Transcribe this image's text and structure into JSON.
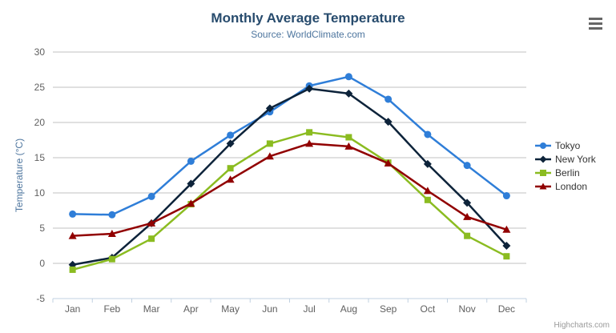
{
  "header": {
    "title": "Monthly Average Temperature",
    "subtitle": "Source: WorldClimate.com"
  },
  "toolbar": {
    "menu_icon": "hamburger-icon"
  },
  "credits": {
    "label": "Highcharts.com"
  },
  "chart_data": {
    "type": "line",
    "title": "Monthly Average Temperature",
    "subtitle": "Source: WorldClimate.com",
    "categories": [
      "Jan",
      "Feb",
      "Mar",
      "Apr",
      "May",
      "Jun",
      "Jul",
      "Aug",
      "Sep",
      "Oct",
      "Nov",
      "Dec"
    ],
    "series": [
      {
        "name": "Tokyo",
        "color": "#2f7ed8",
        "marker": "circle",
        "values": [
          7.0,
          6.9,
          9.5,
          14.5,
          18.2,
          21.5,
          25.2,
          26.5,
          23.3,
          18.3,
          13.9,
          9.6
        ]
      },
      {
        "name": "New York",
        "color": "#0d233a",
        "marker": "diamond",
        "values": [
          -0.2,
          0.8,
          5.7,
          11.3,
          17.0,
          22.0,
          24.8,
          24.1,
          20.1,
          14.1,
          8.6,
          2.5
        ]
      },
      {
        "name": "Berlin",
        "color": "#8bbc21",
        "marker": "square",
        "values": [
          -0.9,
          0.6,
          3.5,
          8.4,
          13.5,
          17.0,
          18.6,
          17.9,
          14.3,
          9.0,
          3.9,
          1.0
        ]
      },
      {
        "name": "London",
        "color": "#910000",
        "marker": "triangle",
        "values": [
          3.9,
          4.2,
          5.7,
          8.5,
          11.9,
          15.2,
          17.0,
          16.6,
          14.2,
          10.3,
          6.6,
          4.8
        ]
      }
    ],
    "xlabel": "",
    "ylabel": "Temperature (°C)",
    "ylim": [
      -5,
      30
    ],
    "ytick_step": 5,
    "grid": true,
    "legend_position": "right",
    "colors": {
      "grid_line": "#C0C0C0",
      "axis_line": "#C0D0E0",
      "axis_label": "#606060",
      "title": "#274b6d",
      "subtitle": "#4d759e"
    }
  }
}
